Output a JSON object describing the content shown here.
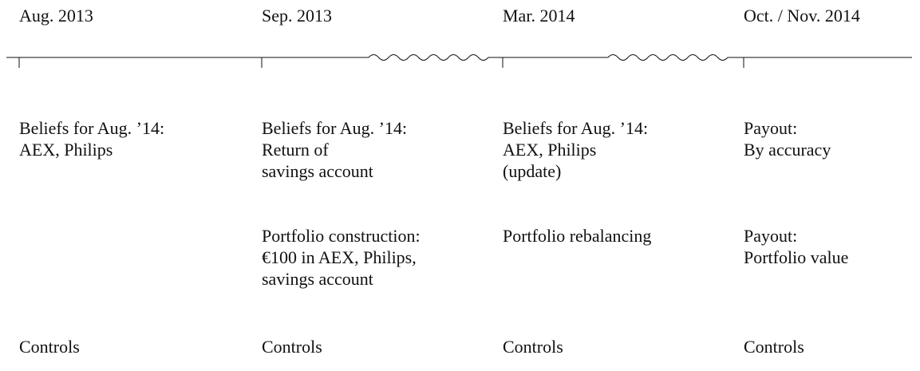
{
  "columns": [
    {
      "date": "Aug. 2013",
      "beliefs": [
        "Beliefs for Aug. ’14:",
        "AEX, Philips"
      ],
      "controls": "Controls"
    },
    {
      "date": "Sep. 2013",
      "beliefs": [
        "Beliefs for Aug. ’14:",
        "Return of",
        "savings account"
      ],
      "portfolio": [
        "Portfolio construction:",
        "€100 in AEX, Philips,",
        "savings account"
      ],
      "controls": "Controls"
    },
    {
      "date": "Mar. 2014",
      "beliefs": [
        "Beliefs for Aug. ’14:",
        "AEX, Philips",
        "(update)"
      ],
      "portfolio": [
        "Portfolio rebalancing"
      ],
      "controls": "Controls"
    },
    {
      "date": "Oct. / Nov. 2014",
      "beliefs": [
        "Payout:",
        "By accuracy"
      ],
      "portfolio": [
        "Payout:",
        "Portfolio value"
      ],
      "controls": "Controls"
    }
  ]
}
